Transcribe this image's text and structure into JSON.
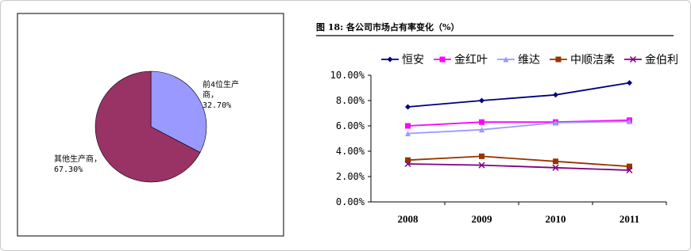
{
  "chart_data": [
    {
      "type": "pie",
      "categories": [
        "前4位生产商",
        "其他生产商"
      ],
      "values": [
        32.7,
        67.3
      ],
      "value_labels": [
        "前4位生产商， 32.70%",
        "其他生产商， 67.30%"
      ],
      "colors": [
        "#9999ff",
        "#993366"
      ]
    },
    {
      "type": "line",
      "title": "图 18: 各公司市场占有率变化（%）",
      "categories": [
        "2008",
        "2009",
        "2010",
        "2011"
      ],
      "series": [
        {
          "name": "恒安",
          "color": "#000080",
          "marker": "diamond",
          "values": [
            7.5,
            8.0,
            8.45,
            9.4
          ]
        },
        {
          "name": "金红叶",
          "color": "#ff00ff",
          "marker": "square",
          "values": [
            6.0,
            6.3,
            6.3,
            6.45
          ]
        },
        {
          "name": "维达",
          "color": "#9999ff",
          "marker": "triangle",
          "values": [
            5.4,
            5.7,
            6.25,
            6.35
          ]
        },
        {
          "name": "中顺洁柔",
          "color": "#993300",
          "marker": "square",
          "values": [
            3.3,
            3.6,
            3.2,
            2.8
          ]
        },
        {
          "name": "金伯利",
          "color": "#800080",
          "marker": "x",
          "values": [
            3.0,
            2.9,
            2.7,
            2.5
          ]
        }
      ],
      "ylim": [
        0,
        10
      ],
      "yticks": [
        {
          "value": 0,
          "label": "0.00%"
        },
        {
          "value": 2,
          "label": "2.00%"
        },
        {
          "value": 4,
          "label": "4.00%"
        },
        {
          "value": 6,
          "label": "6.00%"
        },
        {
          "value": 8,
          "label": "8.00%"
        },
        {
          "value": 10,
          "label": "10.00%"
        }
      ],
      "legend": "top",
      "grid": false
    }
  ]
}
